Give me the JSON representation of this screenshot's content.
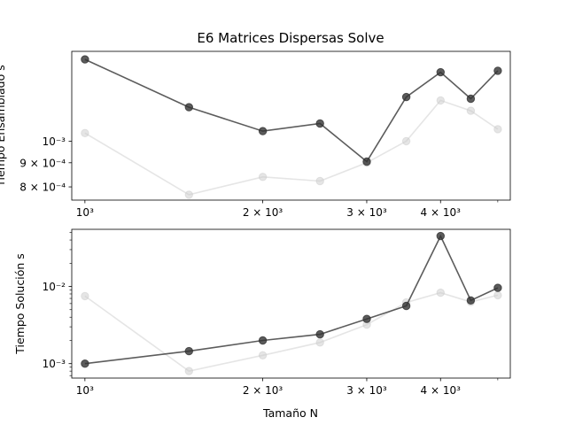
{
  "chart_data": [
    {
      "type": "line",
      "title": "E6 Matrices Dispersas Solve",
      "xlabel": "",
      "ylabel": "Tiempo Ensamblado s",
      "xscale": "log",
      "yscale": "log",
      "x": [
        1000,
        1500,
        2000,
        2500,
        3000,
        3500,
        4000,
        4500,
        5000
      ],
      "xlim": [
        950,
        5250
      ],
      "ylim": [
        0.00075,
        0.00155
      ],
      "grid": false,
      "legend": "none",
      "x_ticks": [
        {
          "value": 1000,
          "label": "10³"
        },
        {
          "value": 2000,
          "label": "2 × 10³"
        },
        {
          "value": 3000,
          "label": "3 × 10³"
        },
        {
          "value": 4000,
          "label": "4 × 10³"
        }
      ],
      "y_ticks": [
        {
          "value": 0.001,
          "label": "10⁻³"
        },
        {
          "value": 0.0009,
          "label": "9 × 10⁻⁴"
        },
        {
          "value": 0.0008,
          "label": "8 × 10⁻⁴"
        }
      ],
      "series": [
        {
          "color": "#cccccc",
          "alpha": 0.5,
          "values": [
            0.00104,
            0.00077,
            0.00084,
            0.000823,
            0.0009,
            0.001,
            0.00122,
            0.00116,
            0.00106
          ]
        },
        {
          "color": "#333333",
          "alpha": 0.8,
          "values": [
            0.00149,
            0.00118,
            0.00105,
            0.00109,
            0.000905,
            0.00124,
            0.0014,
            0.00123,
            0.00141
          ]
        }
      ]
    },
    {
      "type": "line",
      "title": "",
      "xlabel": "Tamaño N",
      "ylabel": "Tiempo Solución s",
      "xscale": "log",
      "yscale": "log",
      "x": [
        1000,
        1500,
        2000,
        2500,
        3000,
        3500,
        4000,
        4500,
        5000
      ],
      "xlim": [
        950,
        5250
      ],
      "ylim": [
        0.00065,
        0.055
      ],
      "grid": false,
      "legend": "none",
      "x_ticks": [
        {
          "value": 1000,
          "label": "10³"
        },
        {
          "value": 2000,
          "label": "2 × 10³"
        },
        {
          "value": 3000,
          "label": "3 × 10³"
        },
        {
          "value": 4000,
          "label": "4 × 10³"
        }
      ],
      "y_ticks": [
        {
          "value": 0.001,
          "label": "10⁻³"
        },
        {
          "value": 0.01,
          "label": "10⁻²"
        }
      ],
      "series": [
        {
          "color": "#cccccc",
          "alpha": 0.5,
          "values": [
            0.0075,
            0.0008,
            0.00128,
            0.00188,
            0.0032,
            0.0062,
            0.0083,
            0.0063,
            0.0077
          ]
        },
        {
          "color": "#333333",
          "alpha": 0.8,
          "values": [
            0.001,
            0.00145,
            0.002,
            0.0024,
            0.0038,
            0.0056,
            0.045,
            0.0066,
            0.0096
          ]
        }
      ]
    }
  ]
}
